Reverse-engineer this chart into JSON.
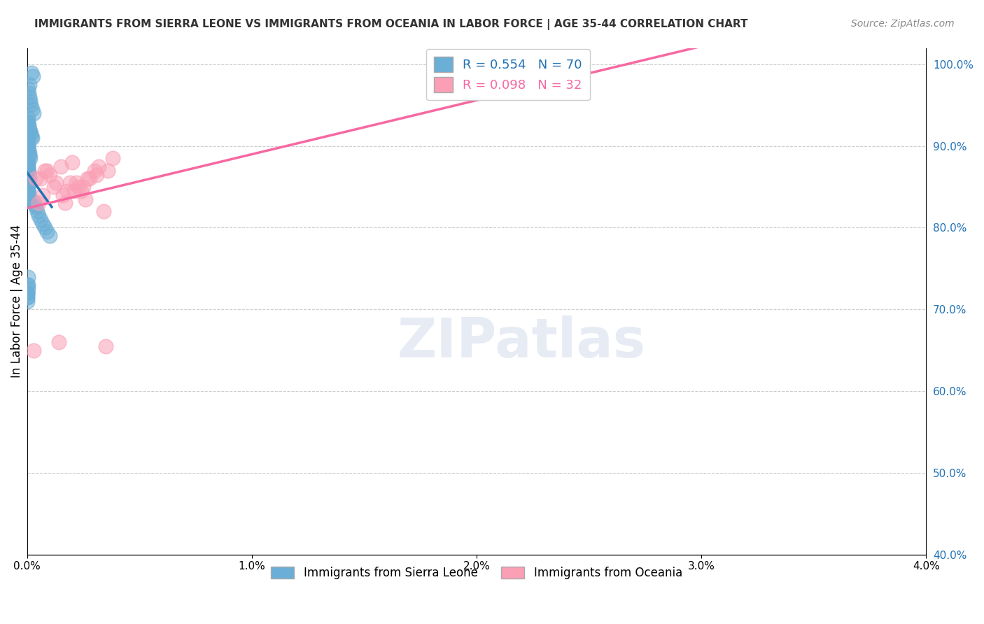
{
  "title": "IMMIGRANTS FROM SIERRA LEONE VS IMMIGRANTS FROM OCEANIA IN LABOR FORCE | AGE 35-44 CORRELATION CHART",
  "source": "Source: ZipAtlas.com",
  "ylabel": "In Labor Force | Age 35-44",
  "blue_label": "Immigrants from Sierra Leone",
  "pink_label": "Immigrants from Oceania",
  "blue_R": 0.554,
  "blue_N": 70,
  "pink_R": 0.098,
  "pink_N": 32,
  "xlim": [
    0.0,
    0.04
  ],
  "ylim": [
    0.4,
    1.02
  ],
  "xticks": [
    0.0,
    0.01,
    0.02,
    0.03,
    0.04
  ],
  "xtick_labels": [
    "0.0%",
    "1.0%",
    "2.0%",
    "3.0%",
    "4.0%"
  ],
  "yticks_right": [
    1.0,
    0.9,
    0.8,
    0.7,
    0.6,
    0.5,
    0.4
  ],
  "ytick_right_labels": [
    "100.0%",
    "90.0%",
    "80.0%",
    "70.0%",
    "60.0%",
    "50.0%",
    "40.0%"
  ],
  "blue_color": "#6baed6",
  "pink_color": "#fa9fb5",
  "blue_line_color": "#2171b5",
  "pink_line_color": "#f768a1",
  "background_color": "#ffffff",
  "watermark": "ZIPatlas",
  "sierra_leone_x": [
    0.0002,
    0.00025,
    0.0001,
    5e-05,
    8e-05,
    0.00012,
    0.00015,
    0.00018,
    0.00022,
    0.00028,
    3e-05,
    4e-05,
    6e-05,
    7e-05,
    9e-05,
    0.00011,
    0.00013,
    0.00016,
    0.00019,
    0.00023,
    2e-05,
    3e-05,
    4e-05,
    5e-05,
    6e-05,
    7e-05,
    8e-05,
    0.0001,
    0.00011,
    0.00013,
    1e-05,
    2e-05,
    3e-05,
    4e-05,
    5e-05,
    6e-05,
    7e-05,
    8e-05,
    9e-05,
    0.0001,
    1e-05,
    2e-05,
    3e-05,
    4e-05,
    5e-05,
    6e-05,
    7e-05,
    8e-05,
    9e-05,
    0.0001,
    0.0003,
    0.00035,
    0.0004,
    0.00045,
    0.0005,
    0.0006,
    0.0007,
    0.0008,
    0.0009,
    0.001,
    1e-05,
    2e-05,
    1e-05,
    3e-05,
    4e-05,
    2e-05,
    3e-05,
    1e-05,
    2e-05,
    1e-05
  ],
  "sierra_leone_y": [
    0.99,
    0.985,
    0.975,
    0.97,
    0.965,
    0.96,
    0.955,
    0.95,
    0.945,
    0.94,
    0.935,
    0.93,
    0.928,
    0.925,
    0.922,
    0.92,
    0.918,
    0.915,
    0.912,
    0.91,
    0.908,
    0.905,
    0.902,
    0.9,
    0.898,
    0.895,
    0.892,
    0.89,
    0.888,
    0.885,
    0.882,
    0.88,
    0.878,
    0.875,
    0.872,
    0.87,
    0.868,
    0.865,
    0.862,
    0.86,
    0.858,
    0.855,
    0.852,
    0.85,
    0.848,
    0.845,
    0.842,
    0.84,
    0.838,
    0.835,
    0.832,
    0.828,
    0.825,
    0.82,
    0.815,
    0.81,
    0.805,
    0.8,
    0.795,
    0.79,
    0.72,
    0.715,
    0.71,
    0.73,
    0.74,
    0.72,
    0.725,
    0.715,
    0.73,
    0.72
  ],
  "oceania_x": [
    0.0008,
    0.0015,
    0.002,
    0.0025,
    0.001,
    0.0005,
    0.0018,
    0.0022,
    0.0028,
    0.0032,
    0.0006,
    0.0012,
    0.0016,
    0.0019,
    0.0024,
    0.0026,
    0.003,
    0.0034,
    0.0038,
    0.0004,
    0.0007,
    0.0009,
    0.0013,
    0.0017,
    0.0021,
    0.0023,
    0.0027,
    0.0031,
    0.0036,
    0.0003,
    0.0014,
    0.0035
  ],
  "oceania_y": [
    0.87,
    0.875,
    0.88,
    0.85,
    0.865,
    0.83,
    0.845,
    0.855,
    0.86,
    0.875,
    0.86,
    0.85,
    0.84,
    0.855,
    0.845,
    0.835,
    0.87,
    0.82,
    0.885,
    0.86,
    0.84,
    0.87,
    0.855,
    0.83,
    0.845,
    0.85,
    0.86,
    0.865,
    0.87,
    0.65,
    0.66,
    0.655
  ]
}
